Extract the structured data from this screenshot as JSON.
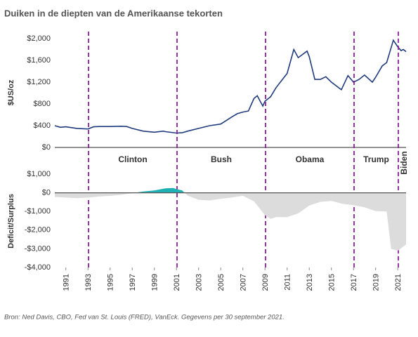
{
  "chart_data": [
    {
      "type": "line",
      "title": "Duiken in de diepten van de Amerikaanse tekorten",
      "ylabel": "$US/oz",
      "color": "#1f3b7d",
      "xlim": [
        1990,
        2021.75
      ],
      "ylim": [
        0,
        2000
      ],
      "yticks": [
        {
          "value": 0,
          "label": "$0"
        },
        {
          "value": 400,
          "label": "$400"
        },
        {
          "value": 800,
          "label": "$800"
        },
        {
          "value": 1200,
          "label": "$1,200"
        },
        {
          "value": 1600,
          "label": "$1,600"
        },
        {
          "value": 2000,
          "label": "$2,000"
        }
      ],
      "x": [
        1990,
        1990.5,
        1991,
        1992,
        1993,
        1993.5,
        1994,
        1995,
        1996,
        1996.5,
        1997,
        1998,
        1999,
        1999.8,
        2000,
        2001,
        2001.5,
        2002,
        2003,
        2004,
        2005,
        2006,
        2006.5,
        2007,
        2007.5,
        2008,
        2008.3,
        2008.8,
        2009,
        2009.5,
        2010,
        2010.5,
        2011,
        2011.6,
        2012,
        2012.8,
        2013,
        2013.5,
        2014,
        2014.5,
        2015,
        2015.9,
        2016.5,
        2017,
        2017.5,
        2018,
        2018.7,
        2019,
        2019.6,
        2020,
        2020.6,
        2021,
        2021.3,
        2021.5,
        2021.75
      ],
      "values": [
        400,
        370,
        380,
        350,
        340,
        380,
        385,
        385,
        390,
        385,
        350,
        300,
        280,
        300,
        290,
        265,
        270,
        300,
        350,
        400,
        430,
        560,
        620,
        650,
        670,
        900,
        950,
        760,
        850,
        930,
        1100,
        1230,
        1360,
        1800,
        1650,
        1770,
        1670,
        1250,
        1250,
        1300,
        1200,
        1060,
        1320,
        1200,
        1250,
        1330,
        1200,
        1290,
        1500,
        1560,
        1970,
        1850,
        1780,
        1800,
        1760
      ],
      "annotations": [
        {
          "label": "Clinton",
          "x": 1993.05
        },
        {
          "label": "Bush",
          "x": 2001.05
        },
        {
          "label": "Obama",
          "x": 2009.05
        },
        {
          "label": "Trump",
          "x": 2017.05
        },
        {
          "label": "Biden",
          "x": 2021.05
        }
      ],
      "annotation_color": "#8e1f9e"
    },
    {
      "type": "area",
      "ylabel": "Deficit/Surplus",
      "color": "#dcdcdc",
      "positive_color": "#1fb0b3",
      "caption": "Bron: Ned Davis, CBO, Fed van St. Louis (FRED), VanEck. Gegevens per 30 september 2021.",
      "xlim": [
        1990,
        2021.75
      ],
      "ylim": [
        -4000,
        1000
      ],
      "yticks": [
        {
          "value": -4000,
          "label": "-$4,000"
        },
        {
          "value": -3000,
          "label": "-$3,000"
        },
        {
          "value": -2000,
          "label": "-$2,000"
        },
        {
          "value": -1000,
          "label": "-$1,000"
        },
        {
          "value": 0,
          "label": "$0"
        },
        {
          "value": 1000,
          "label": "$1,000"
        }
      ],
      "xticks": [
        1991,
        1993,
        1995,
        1997,
        1999,
        2001,
        2003,
        2005,
        2007,
        2009,
        2011,
        2013,
        2015,
        2017,
        2019,
        2021
      ],
      "x": [
        1990,
        1992,
        1993,
        1994,
        1995,
        1996,
        1997,
        1998,
        1999,
        2000,
        2000.7,
        2001,
        2001.5,
        2002,
        2003,
        2004,
        2005,
        2006,
        2007,
        2008,
        2009,
        2009.5,
        2010,
        2011,
        2012,
        2013,
        2014,
        2015,
        2016,
        2017,
        2018,
        2019,
        2020,
        2020.4,
        2021,
        2021.75
      ],
      "values": [
        -220,
        -290,
        -255,
        -200,
        -165,
        -110,
        -20,
        70,
        125,
        236,
        260,
        200,
        130,
        -150,
        -375,
        -410,
        -320,
        -250,
        -160,
        -450,
        -1200,
        -1400,
        -1300,
        -1300,
        -1100,
        -680,
        -485,
        -440,
        -590,
        -665,
        -780,
        -985,
        -1000,
        -3000,
        -3100,
        -2770
      ]
    }
  ]
}
